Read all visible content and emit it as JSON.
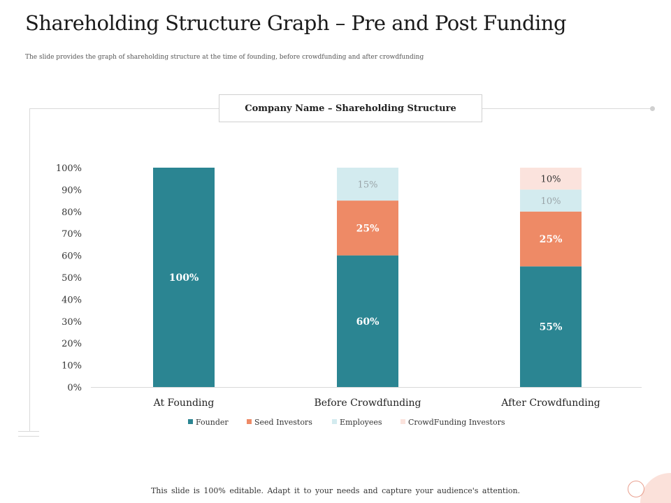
{
  "slide": {
    "title": "Shareholding Structure Graph – Pre and Post Funding",
    "subtitle": "The slide provides the graph of shareholding structure at the time of founding, before crowdfunding and after crowdfunding",
    "footer": "This slide is 100% editable. Adapt it to your needs and capture your audience's attention."
  },
  "chart_data": {
    "type": "bar",
    "stacked": true,
    "title": "Company Name – Shareholding Structure",
    "categories": [
      "At Founding",
      "Before Crowdfunding",
      "After Crowdfunding"
    ],
    "series": [
      {
        "name": "Founder",
        "values": [
          100,
          60,
          55
        ],
        "color": "#2b8592",
        "label_color": "#ffffff",
        "bold": true
      },
      {
        "name": "Seed Investors",
        "values": [
          0,
          25,
          25
        ],
        "color": "#ee8a66",
        "label_color": "#ffffff",
        "bold": true
      },
      {
        "name": "Employees",
        "values": [
          0,
          15,
          10
        ],
        "color": "#d3ebef",
        "label_color": "#9aa4a8",
        "bold": false
      },
      {
        "name": "CrowdFunding Investors",
        "values": [
          0,
          0,
          10
        ],
        "color": "#fbe3dd",
        "label_color": "#333333",
        "bold": false
      }
    ],
    "ylim": [
      0,
      100
    ],
    "yticks": [
      0,
      10,
      20,
      30,
      40,
      50,
      60,
      70,
      80,
      90,
      100
    ],
    "tick_suffix": "%",
    "value_suffix": "%",
    "xlabel": "",
    "ylabel": "",
    "legend": "bottom",
    "grid": false
  }
}
